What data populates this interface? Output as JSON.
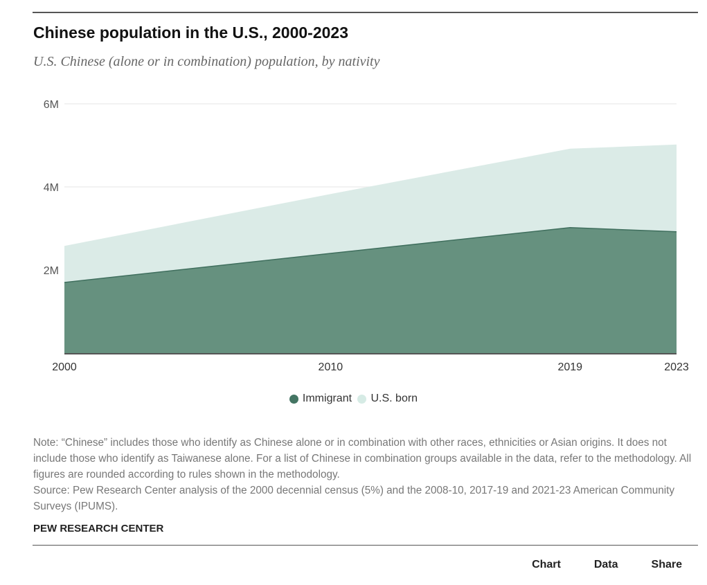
{
  "header": {
    "title": "Chinese population in the U.S., 2000-2023",
    "subtitle": "U.S. Chinese (alone or in combination) population, by nativity"
  },
  "colors": {
    "immigrant": "#66917f",
    "immigrant_line": "#3f6e5d",
    "us_born": "#dbebe7",
    "gridline": "#eeeeee",
    "axis": "#555555",
    "legend_immigrant_dot": "#447563",
    "legend_us_born_dot": "#d6ebe5"
  },
  "chart_data": {
    "type": "area",
    "stacked": true,
    "title": "Chinese population in the U.S., 2000-2023",
    "subtitle": "U.S. Chinese (alone or in combination) population, by nativity",
    "xlabel": "",
    "ylabel": "",
    "x": [
      2000,
      2010,
      2019,
      2023
    ],
    "x_tick_labels": [
      "2000",
      "2010",
      "2019",
      "2023"
    ],
    "y_ticks": [
      2000000,
      4000000,
      6000000
    ],
    "y_tick_labels": [
      "2M",
      "4M",
      "6M"
    ],
    "ylim": [
      0,
      6000000
    ],
    "xlim": [
      2000,
      2023
    ],
    "grid": true,
    "legend_position": "bottom-center",
    "series": [
      {
        "name": "Immigrant",
        "values": [
          1700000,
          2400000,
          3020000,
          2920000
        ]
      },
      {
        "name": "U.S. born",
        "values": [
          880000,
          1430000,
          1900000,
          2100000
        ]
      }
    ]
  },
  "legend": {
    "items": [
      {
        "label": "Immigrant"
      },
      {
        "label": "U.S. born"
      }
    ]
  },
  "notes": {
    "note": "Note: “Chinese” includes those who identify as Chinese alone or in combination with other races, ethnicities or Asian origins. It does not include those who identify as Taiwanese alone. For a list of Chinese in combination groups available in the data, refer to the methodology. All figures are rounded according to rules shown in the methodology.",
    "source": "Source: Pew Research Center analysis of the 2000 decennial census (5%) and the 2008-10, 2017-19 and 2021-23 American Community Surveys (IPUMS)."
  },
  "footer": {
    "brand": "PEW RESEARCH CENTER",
    "tabs": [
      {
        "label": "Chart"
      },
      {
        "label": "Data"
      },
      {
        "label": "Share"
      }
    ]
  }
}
